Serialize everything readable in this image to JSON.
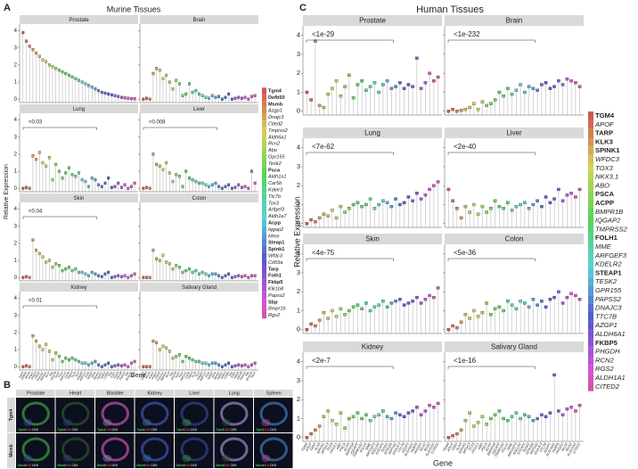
{
  "panel_labels": [
    "A",
    "B",
    "C"
  ],
  "chart_data": [
    {
      "type": "box",
      "title": "Murine Tissues",
      "ylabel": "Relative Expression",
      "xlabel": "Gene",
      "ylim": [
        -0.2,
        4.4
      ],
      "yticks": [
        0,
        1,
        2,
        3,
        4
      ],
      "legend": [
        {
          "label": "Tgm4",
          "bold": true
        },
        {
          "label": "Defb50",
          "bold": true
        },
        {
          "label": "Msmb",
          "bold": true
        },
        {
          "label": "Azgp1",
          "bold": false
        },
        {
          "label": "Dnajc3",
          "bold": false
        },
        {
          "label": "Cited2",
          "bold": false
        },
        {
          "label": "Tmprss2",
          "bold": false
        },
        {
          "label": "Aldh6a1",
          "bold": false
        },
        {
          "label": "Rcn2",
          "bold": false
        },
        {
          "label": "Abo",
          "bold": false
        },
        {
          "label": "Gpr155",
          "bold": false
        },
        {
          "label": "Tesk2",
          "bold": false
        },
        {
          "label": "Psca",
          "bold": true
        },
        {
          "label": "Aldh1a1",
          "bold": false
        },
        {
          "label": "Car5b",
          "bold": false
        },
        {
          "label": "Kdelr3",
          "bold": false
        },
        {
          "label": "Ttc7b",
          "bold": false
        },
        {
          "label": "Tox3",
          "bold": false
        },
        {
          "label": "Arfgef3",
          "bold": false
        },
        {
          "label": "Aldh1a7",
          "bold": false
        },
        {
          "label": "Acpp",
          "bold": true
        },
        {
          "label": "Iqgap2",
          "bold": false
        },
        {
          "label": "Mme",
          "bold": false
        },
        {
          "label": "Steap1",
          "bold": true
        },
        {
          "label": "Spink1",
          "bold": true
        },
        {
          "label": "Wfdc3",
          "bold": false
        },
        {
          "label": "Cd59a",
          "bold": false
        },
        {
          "label": "Tarp",
          "bold": true
        },
        {
          "label": "Folh1",
          "bold": true
        },
        {
          "label": "Fkbp5",
          "bold": true
        },
        {
          "label": "Klk1b8",
          "bold": false
        },
        {
          "label": "Papss2",
          "bold": false
        },
        {
          "label": "Sbp",
          "bold": true
        },
        {
          "label": "Bmpr1b",
          "bold": false
        },
        {
          "label": "Rgs2",
          "bold": false
        }
      ],
      "facets": [
        {
          "title": "Prostate",
          "annotation": null,
          "values": [
            3.9,
            3.4,
            3.1,
            2.9,
            2.7,
            2.5,
            2.3,
            2.2,
            2.0,
            1.9,
            1.8,
            1.7,
            1.6,
            1.5,
            1.4,
            1.3,
            1.2,
            1.1,
            1.0,
            0.9,
            0.8,
            0.7,
            0.6,
            0.5,
            0.4,
            0.35,
            0.3,
            0.25,
            0.2,
            0.15,
            0.1,
            0.08,
            0.05,
            0.03,
            0.02
          ]
        },
        {
          "title": "Brain",
          "annotation": null,
          "values": [
            0,
            0.05,
            0,
            1.5,
            1.8,
            1.7,
            1.2,
            1.4,
            1.0,
            0.6,
            1.1,
            0.9,
            0.2,
            0.3,
            0.9,
            0.4,
            0.5,
            0.3,
            0.2,
            0.1,
            0.05,
            0.2,
            0.1,
            0.15,
            0,
            0.1,
            0.3,
            0,
            0.05,
            0.1,
            0.05,
            0.1,
            0,
            0.15,
            0.2
          ]
        },
        {
          "title": "Lung",
          "annotation": "<0.03",
          "values": [
            0,
            0.05,
            0,
            1.9,
            1.7,
            2.1,
            1.5,
            1.3,
            1.8,
            0.5,
            1.4,
            1.0,
            0.6,
            0.9,
            1.2,
            0.8,
            0.7,
            0.9,
            0.5,
            0.4,
            0.1,
            0.6,
            0.5,
            0.2,
            0.1,
            0.3,
            0.6,
            0.05,
            0.1,
            0.3,
            0.05,
            0.2,
            0,
            0.1,
            0.3
          ]
        },
        {
          "title": "Liver",
          "annotation": "<0.008",
          "values": [
            0,
            0.05,
            0,
            2.0,
            1.4,
            1.3,
            1.1,
            1.5,
            0.9,
            0.4,
            0.8,
            0.7,
            0.1,
            1.0,
            0.6,
            0.5,
            0.4,
            0.3,
            0.3,
            0.2,
            0.1,
            0.2,
            0.3,
            0.1,
            0,
            0.1,
            0.2,
            0,
            0.05,
            0.2,
            0.05,
            0.1,
            0,
            1.0,
            0.3
          ]
        },
        {
          "title": "Skin",
          "annotation": "<0.04",
          "values": [
            0,
            0.05,
            0,
            2.2,
            1.6,
            1.4,
            1.2,
            0.9,
            1.0,
            0.6,
            0.8,
            0.7,
            0.4,
            0.5,
            0.6,
            0.4,
            0.5,
            0.3,
            0.3,
            0.2,
            0.1,
            0.3,
            0.2,
            0.1,
            0.05,
            0.2,
            0.3,
            0,
            0.05,
            0.1,
            0.05,
            0.1,
            0,
            0.1,
            0.2
          ]
        },
        {
          "title": "Colon",
          "annotation": null,
          "values": [
            0,
            0,
            0,
            1.6,
            1.1,
            1.0,
            1.3,
            0.9,
            0.8,
            0.5,
            0.7,
            0.6,
            0.3,
            0.4,
            0.5,
            0.3,
            0.4,
            0.2,
            0.3,
            0.2,
            0.1,
            0.2,
            0.2,
            0.1,
            0,
            0.1,
            0.2,
            0,
            0.05,
            0.1,
            0.05,
            0.1,
            0,
            0.1,
            0.1
          ]
        },
        {
          "title": "Kidney",
          "annotation": "<0.01",
          "values": [
            0,
            0.05,
            0,
            1.8,
            1.5,
            1.2,
            1.0,
            1.3,
            0.9,
            0.4,
            0.8,
            0.6,
            0.3,
            0.5,
            0.4,
            0.5,
            0.4,
            0.3,
            0.2,
            0.2,
            0.1,
            0.2,
            0.3,
            0.1,
            0,
            0.1,
            0.2,
            0,
            0.05,
            0.1,
            0.05,
            0.1,
            0,
            0.2,
            0.3
          ]
        },
        {
          "title": "Salivary Gland",
          "annotation": null,
          "values": [
            0,
            0,
            0,
            1.5,
            1.4,
            1.0,
            1.2,
            1.1,
            0.9,
            0.5,
            0.6,
            0.7,
            0.3,
            0.6,
            0.5,
            0.4,
            0.3,
            0.3,
            0.2,
            0.2,
            0.1,
            0.2,
            0.2,
            0.1,
            0,
            0.1,
            0.2,
            0,
            0.05,
            0.1,
            0.05,
            0.1,
            0,
            0.1,
            0.2
          ]
        }
      ]
    },
    {
      "type": "box",
      "title": "Human Tissues",
      "ylabel": "Relative Expression",
      "xlabel": "Gene",
      "ylim": [
        -0.2,
        4.5
      ],
      "yticks": [
        0,
        1,
        2,
        3,
        4
      ],
      "legend": [
        {
          "label": "TGM4",
          "bold": true
        },
        {
          "label": "APOF",
          "bold": false
        },
        {
          "label": "TARP",
          "bold": true
        },
        {
          "label": "KLK3",
          "bold": true
        },
        {
          "label": "SPINK1",
          "bold": true
        },
        {
          "label": "WFDC3",
          "bold": false
        },
        {
          "label": "TOX3",
          "bold": false
        },
        {
          "label": "NKX3.1",
          "bold": false
        },
        {
          "label": "ABO",
          "bold": false
        },
        {
          "label": "PSCA",
          "bold": true
        },
        {
          "label": "ACPP",
          "bold": true
        },
        {
          "label": "BMPR1B",
          "bold": false
        },
        {
          "label": "IQGAP2",
          "bold": false
        },
        {
          "label": "TMPRSS2",
          "bold": false
        },
        {
          "label": "FOLH1",
          "bold": true
        },
        {
          "label": "MME",
          "bold": false
        },
        {
          "label": "ARFGEF3",
          "bold": false
        },
        {
          "label": "KDELR2",
          "bold": false
        },
        {
          "label": "STEAP1",
          "bold": true
        },
        {
          "label": "TESK2",
          "bold": false
        },
        {
          "label": "GPR155",
          "bold": false
        },
        {
          "label": "PAPSS2",
          "bold": false
        },
        {
          "label": "DNAJC3",
          "bold": false
        },
        {
          "label": "TTC7B",
          "bold": false
        },
        {
          "label": "AZGP1",
          "bold": false
        },
        {
          "label": "ALDH6A1",
          "bold": false
        },
        {
          "label": "FKBP5",
          "bold": true
        },
        {
          "label": "PHGDH",
          "bold": false
        },
        {
          "label": "RCN2",
          "bold": false
        },
        {
          "label": "RGS2",
          "bold": false
        },
        {
          "label": "ALDH1A1",
          "bold": false
        },
        {
          "label": "CITED2",
          "bold": false
        }
      ],
      "facets": [
        {
          "title": "Prostate",
          "annotation": "<1e-29",
          "values": [
            1.0,
            0.6,
            3.7,
            0.3,
            0.2,
            0.9,
            1.2,
            1.6,
            0.8,
            1.3,
            1.9,
            0.7,
            1.4,
            1.6,
            1.1,
            1.3,
            1.5,
            1.0,
            1.4,
            1.6,
            1.2,
            1.3,
            1.5,
            1.2,
            1.4,
            1.3,
            2.8,
            1.2,
            1.5,
            2.0,
            1.6,
            1.8
          ]
        },
        {
          "title": "Brain",
          "annotation": "<1e-232",
          "values": [
            0,
            0.1,
            0,
            0.05,
            0.1,
            0.2,
            0.4,
            0.1,
            0.5,
            0.3,
            0.4,
            0.6,
            1.0,
            0.8,
            1.2,
            0.9,
            1.1,
            1.4,
            1.0,
            1.3,
            1.2,
            1.1,
            1.4,
            1.5,
            1.2,
            1.3,
            1.6,
            1.4,
            1.7,
            1.6,
            1.5,
            1.3
          ]
        },
        {
          "title": "Lung",
          "annotation": "<7e-62",
          "values": [
            0,
            0.2,
            0.1,
            0.3,
            0.5,
            0.4,
            0.7,
            0.3,
            0.9,
            0.6,
            0.8,
            1.0,
            1.1,
            0.9,
            1.0,
            1.3,
            0.8,
            1.0,
            1.2,
            1.1,
            0.9,
            1.3,
            1.0,
            1.1,
            1.4,
            1.2,
            1.6,
            1.3,
            1.5,
            1.8,
            2.0,
            2.2
          ]
        },
        {
          "title": "Liver",
          "annotation": "<2e-40",
          "values": [
            1.8,
            1.2,
            0.8,
            0.3,
            0.9,
            0.6,
            1.0,
            0.5,
            0.9,
            0.6,
            0.8,
            1.2,
            0.9,
            0.8,
            1.1,
            0.7,
            0.9,
            1.0,
            1.1,
            0.8,
            1.0,
            1.2,
            0.9,
            1.4,
            1.1,
            1.3,
            1.8,
            1.2,
            1.5,
            1.6,
            1.4,
            1.8
          ]
        },
        {
          "title": "Skin",
          "annotation": "<4e-75",
          "values": [
            0,
            0.3,
            0.2,
            0.5,
            0.9,
            0.6,
            1.0,
            0.7,
            1.1,
            0.8,
            1.0,
            1.2,
            1.3,
            1.1,
            1.4,
            1.0,
            1.2,
            1.3,
            1.5,
            1.2,
            1.4,
            1.5,
            1.6,
            1.3,
            1.4,
            1.5,
            1.7,
            1.4,
            1.6,
            1.8,
            1.7,
            2.2
          ]
        },
        {
          "title": "Colon",
          "annotation": "<5e-36",
          "values": [
            0,
            0.2,
            0.1,
            0.4,
            0.8,
            0.6,
            1.0,
            0.7,
            0.9,
            1.4,
            0.8,
            1.1,
            1.2,
            1.0,
            1.5,
            1.3,
            1.1,
            1.5,
            1.4,
            1.2,
            1.6,
            1.3,
            1.5,
            1.2,
            1.6,
            1.7,
            2.0,
            1.4,
            1.7,
            1.9,
            1.8,
            1.6
          ]
        },
        {
          "title": "Kidney",
          "annotation": "<2e-7",
          "values": [
            0,
            0.2,
            0.4,
            0.6,
            1.1,
            1.4,
            0.9,
            0.7,
            1.3,
            0.5,
            1.0,
            1.1,
            1.3,
            1.0,
            1.2,
            0.9,
            1.1,
            1.2,
            1.4,
            1.1,
            1.0,
            1.3,
            1.2,
            1.1,
            1.3,
            1.4,
            1.6,
            1.2,
            1.4,
            1.7,
            1.6,
            1.8
          ]
        },
        {
          "title": "Salivary Gland",
          "annotation": "<1e-16",
          "values": [
            0,
            0.1,
            0.2,
            0.4,
            0.9,
            1.3,
            0.6,
            0.8,
            1.1,
            0.7,
            1.0,
            1.2,
            1.4,
            1.0,
            0.9,
            1.1,
            1.3,
            1.0,
            1.2,
            1.1,
            0.9,
            1.0,
            1.2,
            1.1,
            1.3,
            3.3,
            1.4,
            1.2,
            1.5,
            1.6,
            1.4,
            1.7
          ]
        }
      ]
    }
  ],
  "panel_b": {
    "columns": [
      "Prostate",
      "Heart",
      "Bladder",
      "Kidney",
      "Liver",
      "Lung",
      "Spleen"
    ],
    "rows": [
      {
        "label": "Tgm4",
        "caption": [
          "Tgm4",
          "CK8",
          "CK5"
        ]
      },
      {
        "label": "Msmb",
        "caption": [
          "Msmb",
          "CK8",
          "CK5"
        ]
      }
    ]
  }
}
